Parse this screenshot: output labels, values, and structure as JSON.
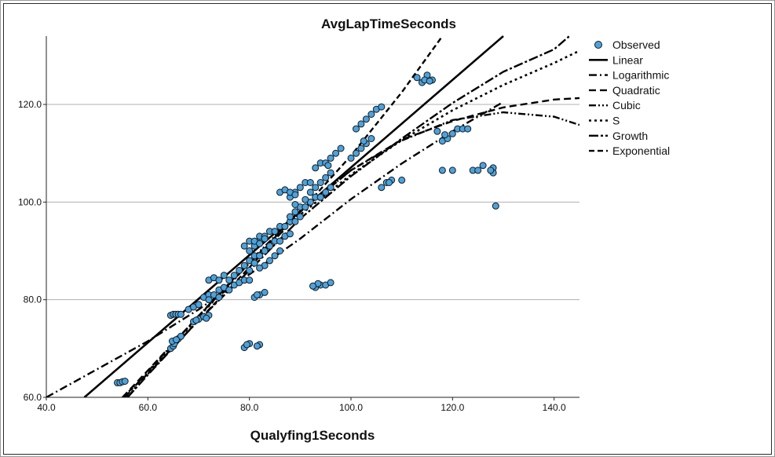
{
  "chart_data": {
    "type": "scatter",
    "title": "AvgLapTimeSeconds",
    "xlabel": "Qualyfing1Seconds",
    "ylabel": "",
    "xlim": [
      40,
      145
    ],
    "ylim": [
      60,
      134
    ],
    "xticks": [
      "40.0",
      "60.0",
      "80.0",
      "100.0",
      "120.0",
      "140.0"
    ],
    "yticks": [
      "60.0",
      "80.0",
      "100.0",
      "120.0"
    ],
    "grid": "horizontal",
    "legend_position": "top-right",
    "colors": {
      "observed_fill": "#4aa3df",
      "observed_edge": "#1a1a1a",
      "lines": "#000000",
      "grid": "#b0b0b0"
    },
    "legend": [
      "Observed",
      "Linear",
      "Logarithmic",
      "Quadratic",
      "Cubic",
      "S",
      "Growth",
      "Exponential"
    ],
    "observed": [
      [
        54,
        63
      ],
      [
        54.5,
        63
      ],
      [
        55,
        63.2
      ],
      [
        55.5,
        63.3
      ],
      [
        64.5,
        70
      ],
      [
        65,
        70.5
      ],
      [
        65.2,
        71
      ],
      [
        66,
        72
      ],
      [
        66.5,
        72.5
      ],
      [
        64.8,
        71.5
      ],
      [
        65.6,
        71.8
      ],
      [
        64.5,
        76.8
      ],
      [
        65,
        77
      ],
      [
        65.5,
        77
      ],
      [
        66,
        77
      ],
      [
        66.5,
        77
      ],
      [
        69,
        75.5
      ],
      [
        70,
        76
      ],
      [
        71,
        76.5
      ],
      [
        72,
        76.8
      ],
      [
        69.5,
        75.8
      ],
      [
        71.5,
        76.2
      ],
      [
        68,
        78
      ],
      [
        69,
        78.5
      ],
      [
        70,
        79
      ],
      [
        71,
        80.5
      ],
      [
        72,
        81
      ],
      [
        73,
        81
      ],
      [
        72,
        80
      ],
      [
        74,
        82
      ],
      [
        75,
        82.5
      ],
      [
        74,
        80.5
      ],
      [
        72,
        84
      ],
      [
        73,
        84.5
      ],
      [
        74,
        84
      ],
      [
        75,
        85
      ],
      [
        76,
        84
      ],
      [
        77,
        85
      ],
      [
        78,
        86
      ],
      [
        77,
        83
      ],
      [
        76,
        82
      ],
      [
        78,
        83.5
      ],
      [
        79,
        84
      ],
      [
        80,
        84
      ],
      [
        79,
        87
      ],
      [
        80,
        88
      ],
      [
        81,
        89
      ],
      [
        82,
        89
      ],
      [
        80,
        90
      ],
      [
        81,
        91
      ],
      [
        82,
        92
      ],
      [
        83,
        90
      ],
      [
        84,
        91
      ],
      [
        85,
        92
      ],
      [
        80,
        86
      ],
      [
        81,
        87.5
      ],
      [
        83,
        87
      ],
      [
        82,
        86.5
      ],
      [
        84,
        88
      ],
      [
        85,
        89
      ],
      [
        86,
        90
      ],
      [
        79,
        91
      ],
      [
        80,
        92
      ],
      [
        81,
        92
      ],
      [
        82,
        93
      ],
      [
        83,
        93
      ],
      [
        84,
        94
      ],
      [
        85,
        94
      ],
      [
        86,
        95
      ],
      [
        87,
        95
      ],
      [
        88,
        96
      ],
      [
        89,
        96
      ],
      [
        90,
        97
      ],
      [
        82,
        91.5
      ],
      [
        83,
        92.5
      ],
      [
        84,
        91
      ],
      [
        86,
        92
      ],
      [
        87,
        93
      ],
      [
        88,
        93.5
      ],
      [
        88,
        97
      ],
      [
        89,
        98
      ],
      [
        90,
        99
      ],
      [
        91,
        99
      ],
      [
        92,
        100
      ],
      [
        93,
        101
      ],
      [
        94,
        101
      ],
      [
        95,
        102
      ],
      [
        96,
        103
      ],
      [
        89,
        99.5
      ],
      [
        91,
        100.5
      ],
      [
        88,
        101
      ],
      [
        89,
        102
      ],
      [
        90,
        103
      ],
      [
        91,
        104
      ],
      [
        92,
        104
      ],
      [
        93,
        103
      ],
      [
        94,
        104
      ],
      [
        95,
        105
      ],
      [
        96,
        106
      ],
      [
        92,
        102
      ],
      [
        86,
        102
      ],
      [
        87,
        102.5
      ],
      [
        88,
        102
      ],
      [
        89,
        101.5
      ],
      [
        93,
        107
      ],
      [
        94,
        108
      ],
      [
        95,
        108
      ],
      [
        96,
        109
      ],
      [
        97,
        110
      ],
      [
        98,
        111
      ],
      [
        95.5,
        107.5
      ],
      [
        100,
        109
      ],
      [
        101,
        110
      ],
      [
        102,
        111
      ],
      [
        103,
        112
      ],
      [
        104,
        113
      ],
      [
        101,
        115
      ],
      [
        102,
        116
      ],
      [
        103,
        117
      ],
      [
        104,
        118
      ],
      [
        105,
        119
      ],
      [
        106,
        119.5
      ],
      [
        102.5,
        112.5
      ],
      [
        106,
        103
      ],
      [
        107,
        104
      ],
      [
        108,
        104.5
      ],
      [
        110,
        104.5
      ],
      [
        107.5,
        104
      ],
      [
        81,
        80.5
      ],
      [
        82,
        81
      ],
      [
        83,
        81.5
      ],
      [
        81.5,
        81
      ],
      [
        93,
        82.5
      ],
      [
        94,
        83
      ],
      [
        95,
        83
      ],
      [
        96,
        83.5
      ],
      [
        93.5,
        83.3
      ],
      [
        92.5,
        82.8
      ],
      [
        79,
        70.2
      ],
      [
        80,
        71
      ],
      [
        82,
        70.8
      ],
      [
        79.5,
        70.8
      ],
      [
        81.5,
        70.5
      ],
      [
        113,
        125.5
      ],
      [
        114,
        124.5
      ],
      [
        115,
        126
      ],
      [
        116,
        125
      ],
      [
        114.5,
        125
      ],
      [
        115.5,
        124.8
      ],
      [
        117,
        114.5
      ],
      [
        118,
        112.5
      ],
      [
        119,
        113
      ],
      [
        120,
        114
      ],
      [
        121,
        115
      ],
      [
        122,
        115
      ],
      [
        123,
        115
      ],
      [
        118.5,
        113.8
      ],
      [
        118,
        106.5
      ],
      [
        120,
        106.5
      ],
      [
        124,
        106.5
      ],
      [
        125,
        106.5
      ],
      [
        126,
        107.5
      ],
      [
        128,
        107
      ],
      [
        128,
        106
      ],
      [
        127.5,
        106.5
      ],
      [
        128.5,
        99.2
      ]
    ],
    "series": [
      {
        "name": "Linear",
        "x": [
          47.5,
          130
        ],
        "y": [
          60,
          134
        ]
      },
      {
        "name": "Logarithmic",
        "x": [
          40,
          60,
          70,
          80,
          90,
          100,
          110,
          120,
          130
        ],
        "y": [
          60,
          71.5,
          78,
          85.2,
          92.5,
          100.6,
          107.9,
          114.5,
          120.5
        ]
      },
      {
        "name": "Quadratic",
        "x": [
          55,
          60,
          70,
          80,
          90,
          100,
          110,
          120,
          130,
          140,
          145
        ],
        "y": [
          60,
          65.5,
          76.7,
          87.5,
          98,
          106.5,
          112.8,
          116.6,
          119.4,
          121,
          121.3
        ]
      },
      {
        "name": "Cubic",
        "x": [
          55.5,
          60,
          70,
          80,
          90,
          100,
          110,
          120,
          130,
          140,
          145
        ],
        "y": [
          60,
          65.3,
          76.7,
          87.8,
          98.2,
          106.5,
          112.6,
          116.8,
          118.4,
          117.5,
          115.8
        ]
      },
      {
        "name": "S",
        "x": [
          56,
          60,
          70,
          80,
          90,
          100,
          110,
          120,
          130,
          140,
          145
        ],
        "y": [
          60,
          65,
          76.5,
          87.5,
          97.4,
          105.6,
          112.7,
          118.8,
          124,
          128.5,
          131
        ]
      },
      {
        "name": "Growth",
        "x": [
          56,
          60,
          70,
          80,
          90,
          100,
          110,
          120,
          130,
          140,
          143
        ],
        "y": [
          60,
          64.6,
          75.8,
          86,
          96.6,
          105.3,
          113,
          120.3,
          126.7,
          131.3,
          134
        ]
      },
      {
        "name": "Exponential",
        "x": [
          55,
          60,
          70,
          80,
          90,
          100,
          110,
          118
        ],
        "y": [
          60,
          64.8,
          75.8,
          86.6,
          98,
          109.5,
          122.5,
          134
        ]
      }
    ]
  }
}
